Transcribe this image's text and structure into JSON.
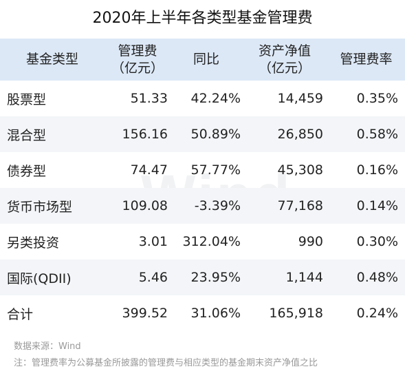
{
  "title": "2020年上半年各类型基金管理费",
  "watermark": "Wind",
  "table": {
    "headers": [
      {
        "line1": "基金类型",
        "line2": ""
      },
      {
        "line1": "管理费",
        "line2": "（亿元）"
      },
      {
        "line1": "同比",
        "line2": ""
      },
      {
        "line1": "资产净值",
        "line2": "（亿元）"
      },
      {
        "line1": "管理费率",
        "line2": ""
      }
    ],
    "rows": [
      {
        "type": "股票型",
        "fee": "51.33",
        "yoy": "42.24%",
        "nav": "14,459",
        "rate": "0.35%"
      },
      {
        "type": "混合型",
        "fee": "156.16",
        "yoy": "50.89%",
        "nav": "26,850",
        "rate": "0.58%"
      },
      {
        "type": "债券型",
        "fee": "74.47",
        "yoy": "57.77%",
        "nav": "45,308",
        "rate": "0.16%"
      },
      {
        "type": "货币市场型",
        "fee": "109.08",
        "yoy": "-3.39%",
        "nav": "77,168",
        "rate": "0.14%"
      },
      {
        "type": "另类投资",
        "fee": "3.01",
        "yoy": "312.04%",
        "nav": "990",
        "rate": "0.30%"
      },
      {
        "type": "国际(QDII)",
        "fee": "5.46",
        "yoy": "23.95%",
        "nav": "1,144",
        "rate": "0.48%"
      },
      {
        "type": "合计",
        "fee": "399.52",
        "yoy": "31.06%",
        "nav": "165,918",
        "rate": "0.24%"
      }
    ]
  },
  "footer": {
    "source": "数据来源：Wind",
    "note": "注：管理费率为公募基金所披露的管理费与相应类型的基金期末资产净值之比"
  },
  "colors": {
    "header_bg": "#dce8f6",
    "stripe_bg": "#f3f5f8",
    "footer_text": "#999999"
  }
}
